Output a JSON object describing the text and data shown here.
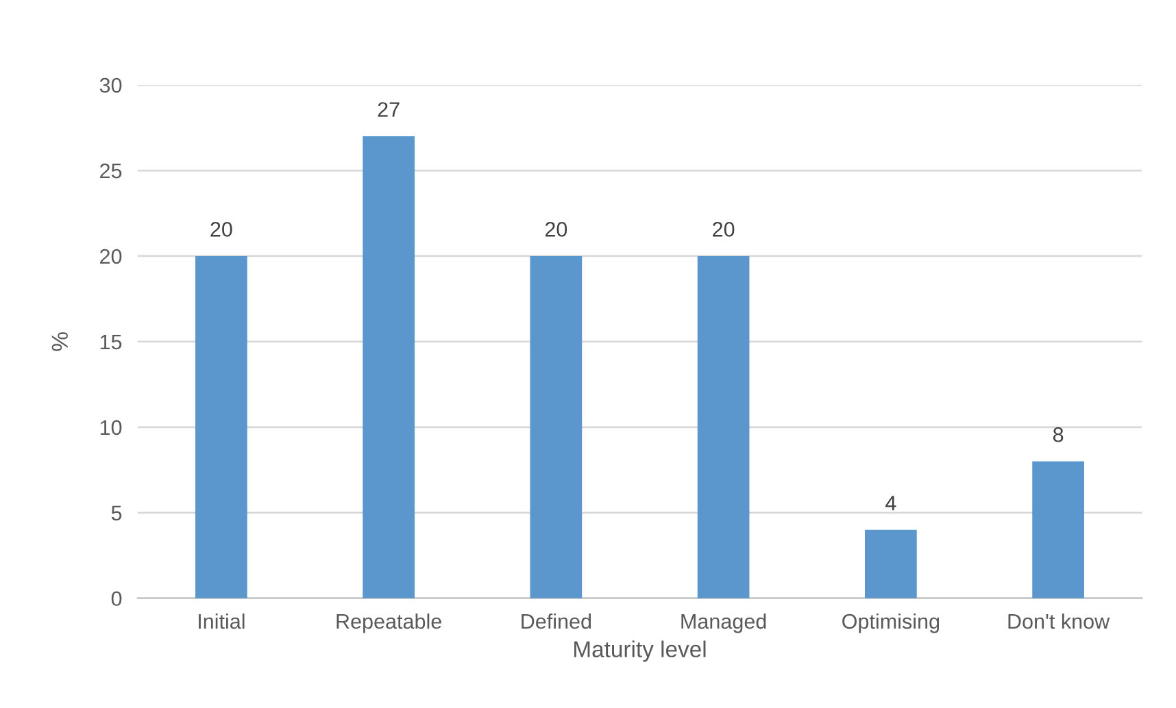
{
  "chart_data": {
    "type": "bar",
    "xlabel": "Maturity level",
    "ylabel": "%",
    "categories": [
      "Initial",
      "Repeatable",
      "Defined",
      "Managed",
      "Optimising",
      "Don't know"
    ],
    "values": [
      20,
      27,
      20,
      20,
      4,
      8
    ],
    "color": "#5b96cc",
    "ylim": [
      0,
      30
    ],
    "yticks": [
      0,
      5,
      10,
      15,
      20,
      25,
      30
    ],
    "grid": "y",
    "data_labels": true
  }
}
